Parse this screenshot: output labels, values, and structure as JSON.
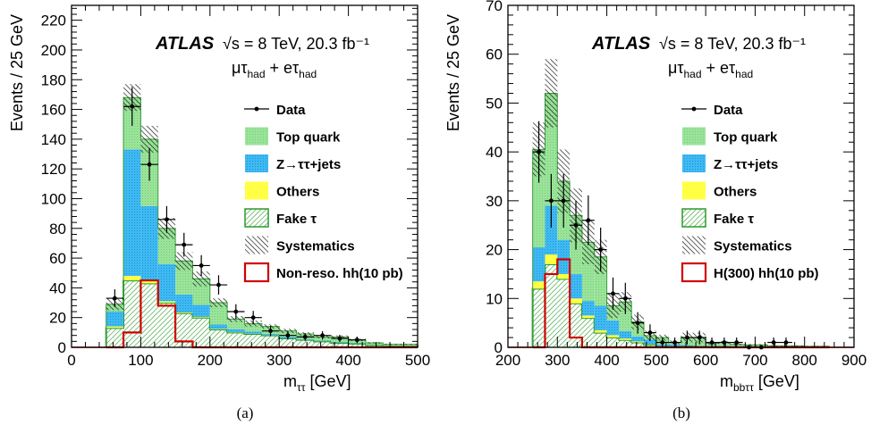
{
  "panels_caption": [
    "(a)",
    "(b)"
  ],
  "legend_items": [
    {
      "key": "data",
      "label": "Data"
    },
    {
      "key": "top",
      "label": "Top quark",
      "color": "#9be39b"
    },
    {
      "key": "z",
      "label": "Z→ττ+jets",
      "color": "#3fb9f2"
    },
    {
      "key": "others",
      "label": "Others",
      "color": "#ffff44"
    },
    {
      "key": "fake",
      "label": "Fake τ",
      "color": "#2a9a2a"
    },
    {
      "key": "syst",
      "label": "Systematics"
    }
  ],
  "colors": {
    "top": "#9be39b",
    "z": "#3fb9f2",
    "others": "#ffff44",
    "fake_line": "#2a9a2a",
    "fake_hatch": "#2a9a2a",
    "signal": "#d00000"
  },
  "chart_data": [
    {
      "type": "bar",
      "panel": "(a)",
      "atlas": "ATLAS",
      "energy": "√s = 8 TeV, 20.3 fb⁻¹",
      "channel": "μτhad + eτhad",
      "xlabel": "mττ [GeV]",
      "ylabel": "Events / 25 GeV",
      "xlim": [
        0,
        500
      ],
      "ylim": [
        0,
        230
      ],
      "xticks": [
        0,
        100,
        200,
        300,
        400,
        500
      ],
      "yticks": [
        0,
        20,
        40,
        60,
        80,
        100,
        120,
        140,
        160,
        180,
        200,
        220
      ],
      "bin_edges": [
        50,
        75,
        100,
        125,
        150,
        175,
        200,
        225,
        250,
        275,
        300,
        325,
        350,
        375,
        400,
        425,
        450,
        475,
        500
      ],
      "stack": {
        "fake": [
          13,
          45,
          43,
          30,
          23,
          20,
          12,
          10,
          9,
          8,
          6,
          5,
          4,
          3,
          2.5,
          1.5,
          1,
          1
        ],
        "others": [
          1,
          3,
          2,
          1,
          0.5,
          0.5,
          0.3,
          0.2,
          0.2,
          0.1,
          0.1,
          0.1,
          0.1,
          0,
          0,
          0,
          0,
          0
        ],
        "z": [
          10,
          85,
          50,
          25,
          12,
          8,
          3,
          2,
          1.5,
          1,
          1,
          0.5,
          0.5,
          0.5,
          0.3,
          0.2,
          0.1,
          0.1
        ],
        "top": [
          5,
          35,
          45,
          24,
          23,
          18,
          15,
          7,
          5,
          5,
          4,
          3,
          2.5,
          3,
          2.5,
          1,
          0.5,
          0.5
        ]
      },
      "total": [
        29,
        168,
        140,
        80,
        58,
        46,
        30,
        19,
        16,
        14,
        11,
        9,
        7,
        7,
        5,
        3,
        2,
        2
      ],
      "syst_half_width": [
        4,
        9,
        9,
        7,
        6,
        5,
        3,
        2,
        2,
        1.5,
        1.5,
        1.2,
        1,
        1,
        0.8,
        0.5,
        0.4,
        0.4
      ],
      "data": {
        "x": [
          62.5,
          87.5,
          112.5,
          137.5,
          162.5,
          187.5,
          212.5,
          237.5,
          262.5,
          287.5,
          312.5,
          337.5,
          362.5,
          387.5,
          412.5
        ],
        "y": [
          33,
          162,
          123,
          86,
          69,
          55,
          42,
          24,
          20,
          11,
          8,
          7,
          8,
          6,
          5
        ],
        "err": [
          6,
          13,
          11,
          9,
          8,
          7,
          6.5,
          5,
          4.5,
          3.3,
          2.8,
          2.6,
          2.8,
          2.4,
          2.2
        ]
      },
      "signal": {
        "label": "Non-reso. hh(10 pb)",
        "values": [
          0,
          10,
          45,
          28,
          4,
          0,
          0,
          0,
          0,
          0,
          0,
          0,
          0,
          0,
          0,
          0,
          0,
          0
        ]
      }
    },
    {
      "type": "bar",
      "panel": "(b)",
      "atlas": "ATLAS",
      "energy": "√s = 8 TeV, 20.3 fb⁻¹",
      "channel": "μτhad + eτhad",
      "xlabel": "mbbττ [GeV]",
      "ylabel": "Events / 25 GeV",
      "xlim": [
        200,
        900
      ],
      "ylim": [
        0,
        70
      ],
      "xticks": [
        200,
        300,
        400,
        500,
        600,
        700,
        800,
        900
      ],
      "yticks": [
        0,
        10,
        20,
        30,
        40,
        50,
        60,
        70
      ],
      "bin_edges": [
        250,
        275,
        300,
        325,
        350,
        375,
        400,
        425,
        450,
        475,
        500,
        525,
        550,
        575,
        600,
        625,
        650,
        675,
        700,
        725,
        750,
        775,
        800,
        825,
        850
      ],
      "stack": {
        "fake": [
          12,
          17,
          14,
          9,
          6,
          3,
          2,
          1.5,
          1,
          0.5,
          0.3,
          0.3,
          0.3,
          0.2,
          0.2,
          0.2,
          0.1,
          0.1,
          0.1,
          0,
          0,
          0,
          0,
          0
        ],
        "others": [
          1.5,
          2,
          1,
          1,
          0.5,
          0.5,
          0.5,
          0.3,
          0.2,
          0.1,
          0,
          0,
          0,
          0,
          0,
          0,
          0,
          0,
          0,
          0,
          0,
          0,
          0,
          0
        ],
        "z": [
          7,
          10,
          7,
          5,
          3,
          5,
          3,
          1.5,
          1,
          1,
          0.3,
          0.3,
          0.2,
          0.1,
          0.1,
          0.1,
          0,
          0,
          0,
          0,
          0,
          0,
          0,
          0
        ],
        "top": [
          20,
          23,
          12,
          12,
          12,
          10,
          3,
          6,
          3,
          0.8,
          1.4,
          0.4,
          1.5,
          1.7,
          0.5,
          0.7,
          0.5,
          0.4,
          0.4,
          0.3,
          0.3,
          0.3,
          0.2,
          0.2
        ]
      },
      "total": [
        40.5,
        52,
        34,
        27,
        21.5,
        18.5,
        8.5,
        9.3,
        5.2,
        2.4,
        2,
        1,
        2,
        2,
        0.8,
        1,
        0.6,
        0.5,
        0.5,
        0.3,
        0.3,
        0.3,
        0.2,
        0.2
      ],
      "syst_half_width": [
        5.5,
        7,
        6.5,
        5.5,
        4.5,
        3.5,
        2.5,
        2,
        1.5,
        1,
        0.6,
        0.4,
        1,
        1,
        0.3,
        0.3,
        0.2,
        0.2,
        0.2,
        0.1,
        0.1,
        0.1,
        0.1,
        0.1
      ],
      "data": {
        "x": [
          262.5,
          287.5,
          312.5,
          337.5,
          362.5,
          387.5,
          412.5,
          437.5,
          462.5,
          487.5,
          512.5,
          537.5,
          562.5,
          587.5,
          612.5,
          637.5,
          662.5,
          687.5,
          712.5,
          737.5,
          762.5
        ],
        "y": [
          40,
          30,
          30,
          25,
          26,
          20,
          11,
          10,
          5,
          3,
          1,
          1,
          2,
          2,
          1,
          1,
          1,
          0,
          0,
          1,
          1
        ],
        "err": [
          6.3,
          5.5,
          5.5,
          5,
          5.1,
          4.5,
          3.3,
          3.2,
          2.2,
          1.7,
          1,
          1,
          1.4,
          1.4,
          1,
          1,
          1,
          0,
          0,
          1,
          1
        ]
      },
      "signal": {
        "label": "H(300) hh(10 pb)",
        "values": [
          0,
          15,
          18,
          2,
          0,
          0,
          0,
          0,
          0,
          0,
          0,
          0,
          0,
          0,
          0,
          0,
          0,
          0,
          0,
          0,
          0,
          0,
          0,
          0
        ]
      }
    }
  ]
}
